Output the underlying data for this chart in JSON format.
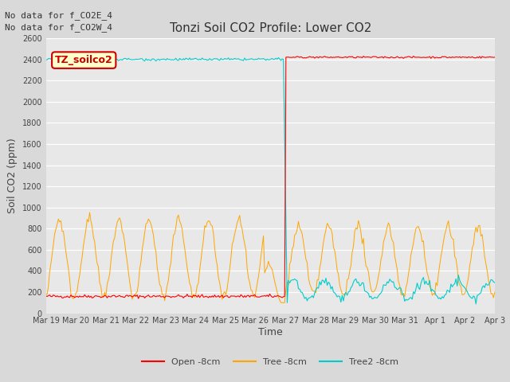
{
  "title": "Tonzi Soil CO2 Profile: Lower CO2",
  "xlabel": "Time",
  "ylabel": "Soil CO2 (ppm)",
  "ylim": [
    0,
    2600
  ],
  "yticks": [
    0,
    200,
    400,
    600,
    800,
    1000,
    1200,
    1400,
    1600,
    1800,
    2000,
    2200,
    2400,
    2600
  ],
  "annotation_text": "No data for f_CO2E_4\nNo data for f_CO2W_4",
  "legend_box_label": "TZ_soilco2",
  "legend_box_edgecolor": "#cc0000",
  "legend_box_textcolor": "#cc0000",
  "legend_box_fill": "#ffffcc",
  "fig_bg_color": "#d9d9d9",
  "plot_bg_color": "#e8e8e8",
  "colors": {
    "open": "#ff0000",
    "tree": "#ffa500",
    "tree2": "#00cccc"
  },
  "line_labels": [
    "Open -8cm",
    "Tree -8cm",
    "Tree2 -8cm"
  ],
  "transition_day": 8.0,
  "open_before_value": 160,
  "open_after_value": 2420,
  "tree2_before_value": 2400,
  "tree2_after_range": [
    150,
    350
  ],
  "tree_before_range": [
    150,
    950
  ],
  "tree_after_range": [
    150,
    950
  ],
  "total_days": 15,
  "xtick_labels": [
    "Mar 19",
    "Mar 20",
    "Mar 21",
    "Mar 22",
    "Mar 23",
    "Mar 24",
    "Mar 25",
    "Mar 26",
    "Mar 27",
    "Mar 28",
    "Mar 29",
    "Mar 30",
    "Mar 31",
    "Apr 1",
    "Apr 2",
    "Apr 3"
  ],
  "title_fontsize": 11,
  "axis_label_fontsize": 9,
  "tick_fontsize": 7,
  "legend_fontsize": 8,
  "annotation_fontsize": 8
}
